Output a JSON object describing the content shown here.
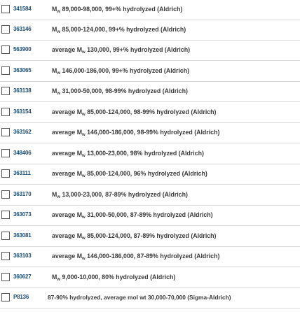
{
  "products": [
    {
      "number": "341584",
      "pre": "M",
      "sub": "w",
      "post": " 89,000-98,000, 99+% hydrolyzed (Aldrich)"
    },
    {
      "number": "363146",
      "pre": "M",
      "sub": "w",
      "post": " 85,000-124,000, 99+% hydrolyzed (Aldrich)"
    },
    {
      "number": "563900",
      "pre": "average M",
      "sub": "w",
      "post": " 130,000, 99+% hydrolyzed (Aldrich)"
    },
    {
      "number": "363065",
      "pre": "M",
      "sub": "w",
      "post": " 146,000-186,000, 99+% hydrolyzed (Aldrich)"
    },
    {
      "number": "363138",
      "pre": "M",
      "sub": "w",
      "post": " 31,000-50,000, 98-99% hydrolyzed (Aldrich)"
    },
    {
      "number": "363154",
      "pre": "average M",
      "sub": "w",
      "post": " 85,000-124,000, 98-99% hydrolyzed (Aldrich)"
    },
    {
      "number": "363162",
      "pre": "average M",
      "sub": "w",
      "post": " 146,000-186,000, 98-99% hydrolyzed (Aldrich)"
    },
    {
      "number": "348406",
      "pre": "average M",
      "sub": "w",
      "post": " 13,000-23,000, 98% hydrolyzed (Aldrich)"
    },
    {
      "number": "363111",
      "pre": "average M",
      "sub": "w",
      "post": " 85,000-124,000, 96% hydrolyzed (Aldrich)"
    },
    {
      "number": "363170",
      "pre": "M",
      "sub": "w",
      "post": " 13,000-23,000, 87-89% hydrolyzed (Aldrich)"
    },
    {
      "number": "363073",
      "pre": "average M",
      "sub": "w",
      "post": " 31,000-50,000, 87-89% hydrolyzed (Aldrich)"
    },
    {
      "number": "363081",
      "pre": "average M",
      "sub": "w",
      "post": " 85,000-124,000, 87-89% hydrolyzed (Aldrich)"
    },
    {
      "number": "363103",
      "pre": "average M",
      "sub": "w",
      "post": " 146,000-186,000, 87-89% hydrolyzed (Aldrich)"
    },
    {
      "number": "360627",
      "pre": "M",
      "sub": "w",
      "post": " 9,000-10,000, 80% hydrolyzed (Aldrich)"
    },
    {
      "number": "P8136",
      "pre": "87-90% hydrolyzed, average mol wt 30,000-70,000 (Sigma-Aldrich)",
      "sub": "",
      "post": ""
    }
  ]
}
